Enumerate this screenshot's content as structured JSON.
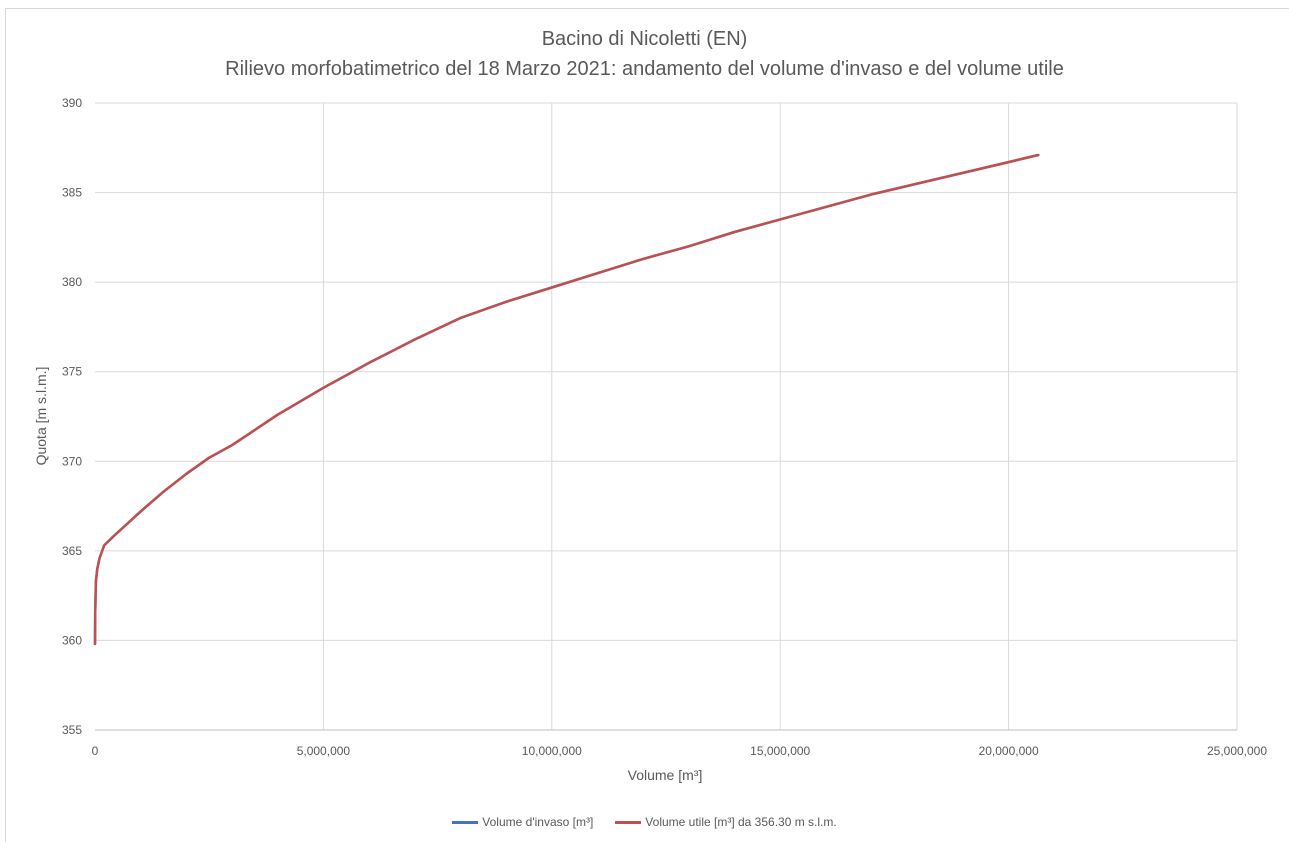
{
  "chart_data": {
    "type": "line",
    "title": "Bacino di Nicoletti (EN)",
    "subtitle": "Rilievo morfobatimetrico del 18 Marzo 2021: andamento del volume d'invaso e del volume utile",
    "xlabel": "Volume [m³]",
    "ylabel": "Quota [m s.l.m.]",
    "xlim": [
      0,
      25000000
    ],
    "ylim": [
      355,
      390
    ],
    "x_ticks": [
      0,
      5000000,
      10000000,
      15000000,
      20000000,
      25000000
    ],
    "x_tick_labels": [
      "0",
      "5,000,000",
      "10,000,000",
      "15,000,000",
      "20,000,000",
      "25,000,000"
    ],
    "y_ticks": [
      355,
      360,
      365,
      370,
      375,
      380,
      385,
      390
    ],
    "y_tick_labels": [
      "355",
      "360",
      "365",
      "370",
      "375",
      "380",
      "385",
      "390"
    ],
    "grid": true,
    "legend_position": "bottom",
    "series": [
      {
        "name": "Volume d'invaso  [m³]",
        "color": "#4472c4",
        "x": [
          0,
          5000,
          20000,
          50000,
          100000,
          200000,
          400000,
          700000,
          1000000,
          1500000,
          2000000,
          2500000,
          3000000,
          4000000,
          5000000,
          6000000,
          7000000,
          8000000,
          9000000,
          10000000,
          11000000,
          12000000,
          13000000,
          14000000,
          15000000,
          16000000,
          17000000,
          18000000,
          19000000,
          20000000,
          20650000
        ],
        "y": [
          359.8,
          361.5,
          363.3,
          364.0,
          364.6,
          365.3,
          365.8,
          366.5,
          367.2,
          368.3,
          369.3,
          370.2,
          370.9,
          372.6,
          374.1,
          375.5,
          376.8,
          378.0,
          378.9,
          379.7,
          380.5,
          381.3,
          382.0,
          382.8,
          383.5,
          384.2,
          384.9,
          385.5,
          386.1,
          386.7,
          387.1
        ]
      },
      {
        "name": "Volume utile [m³] da 356.30 m s.l.m.",
        "color": "#c0504d",
        "x": [
          0,
          5000,
          20000,
          50000,
          100000,
          200000,
          400000,
          700000,
          1000000,
          1500000,
          2000000,
          2500000,
          3000000,
          4000000,
          5000000,
          6000000,
          7000000,
          8000000,
          9000000,
          10000000,
          11000000,
          12000000,
          13000000,
          14000000,
          15000000,
          16000000,
          17000000,
          18000000,
          19000000,
          20000000,
          20650000
        ],
        "y": [
          359.8,
          361.5,
          363.3,
          364.0,
          364.6,
          365.3,
          365.8,
          366.5,
          367.2,
          368.3,
          369.3,
          370.2,
          370.9,
          372.6,
          374.1,
          375.5,
          376.8,
          378.0,
          378.9,
          379.7,
          380.5,
          381.3,
          382.0,
          382.8,
          383.5,
          384.2,
          384.9,
          385.5,
          386.1,
          386.7,
          387.1
        ]
      }
    ]
  }
}
